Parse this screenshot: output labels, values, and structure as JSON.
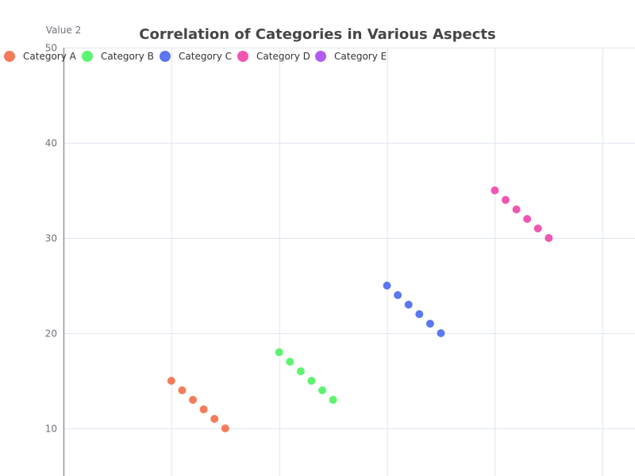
{
  "chart_data": {
    "type": "scatter",
    "title": "Correlation of Categories in Various Aspects",
    "xlabel": "",
    "ylabel": "Value 2",
    "ylim": [
      5,
      50
    ],
    "xlim": [
      0,
      5.3
    ],
    "y_ticks": [
      10,
      20,
      30,
      40,
      50
    ],
    "x_grid": [
      0,
      1,
      2,
      3,
      4,
      5
    ],
    "grid": true,
    "legend_position": "top-left",
    "series": [
      {
        "name": "Category A",
        "color": "#f47c5a",
        "points": [
          {
            "x": 1.0,
            "y": 15
          },
          {
            "x": 1.1,
            "y": 14
          },
          {
            "x": 1.2,
            "y": 13
          },
          {
            "x": 1.3,
            "y": 12
          },
          {
            "x": 1.4,
            "y": 11
          },
          {
            "x": 1.5,
            "y": 10
          }
        ]
      },
      {
        "name": "Category B",
        "color": "#5ef36f",
        "points": [
          {
            "x": 2.0,
            "y": 18
          },
          {
            "x": 2.1,
            "y": 17
          },
          {
            "x": 2.2,
            "y": 16
          },
          {
            "x": 2.3,
            "y": 15
          },
          {
            "x": 2.4,
            "y": 14
          },
          {
            "x": 2.5,
            "y": 13
          }
        ]
      },
      {
        "name": "Category C",
        "color": "#5b78f0",
        "points": [
          {
            "x": 3.0,
            "y": 25
          },
          {
            "x": 3.1,
            "y": 24
          },
          {
            "x": 3.2,
            "y": 23
          },
          {
            "x": 3.3,
            "y": 22
          },
          {
            "x": 3.4,
            "y": 21
          },
          {
            "x": 3.5,
            "y": 20
          }
        ]
      },
      {
        "name": "Category D",
        "color": "#f056b1",
        "points": [
          {
            "x": 4.0,
            "y": 35
          },
          {
            "x": 4.1,
            "y": 34
          },
          {
            "x": 4.2,
            "y": 33
          },
          {
            "x": 4.3,
            "y": 32
          },
          {
            "x": 4.4,
            "y": 31
          },
          {
            "x": 4.5,
            "y": 30
          }
        ]
      },
      {
        "name": "Category E",
        "color": "#b05cf0",
        "points": []
      }
    ]
  }
}
